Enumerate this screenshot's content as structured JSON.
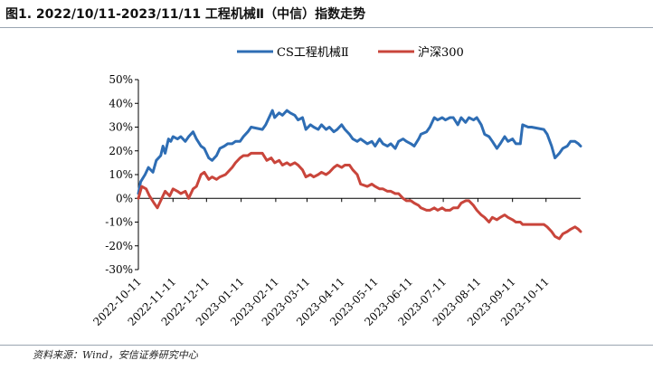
{
  "figure_title": "图1. 2022/10/11-2023/11/11 工程机械Ⅱ（中信）指数走势",
  "source_note": "资料来源：Wind，安信证券研究中心",
  "chart_data": {
    "type": "line",
    "yformat": "percent",
    "ylim": [
      -0.3,
      0.5
    ],
    "yticks": [
      -0.3,
      -0.2,
      -0.1,
      0,
      0.1,
      0.2,
      0.3,
      0.4,
      0.5
    ],
    "ytick_labels": [
      "-30%",
      "-20%",
      "-10%",
      "0%",
      "10%",
      "20%",
      "30%",
      "40%",
      "50%"
    ],
    "xtick_labels": [
      "2022-10-11",
      "2022-11-11",
      "2022-12-11",
      "2023-01-11",
      "2023-02-11",
      "2023-03-11",
      "2023-04-11",
      "2023-05-11",
      "2023-06-11",
      "2023-07-11",
      "2023-08-11",
      "2023-09-11",
      "2023-10-11"
    ],
    "legend_position": "top-center",
    "x_start": "2022-10-11",
    "x_end": "2023-11-11",
    "series": [
      {
        "name": "CS工程机械Ⅱ",
        "color": "#2e6db4",
        "points": [
          [
            "2022-10-11",
            0.02
          ],
          [
            "2022-10-13",
            0.07
          ],
          [
            "2022-10-17",
            0.1
          ],
          [
            "2022-10-20",
            0.13
          ],
          [
            "2022-10-24",
            0.11
          ],
          [
            "2022-10-27",
            0.16
          ],
          [
            "2022-10-31",
            0.18
          ],
          [
            "2022-11-02",
            0.22
          ],
          [
            "2022-11-04",
            0.19
          ],
          [
            "2022-11-07",
            0.25
          ],
          [
            "2022-11-09",
            0.24
          ],
          [
            "2022-11-11",
            0.26
          ],
          [
            "2022-11-15",
            0.25
          ],
          [
            "2022-11-18",
            0.26
          ],
          [
            "2022-11-22",
            0.24
          ],
          [
            "2022-11-25",
            0.26
          ],
          [
            "2022-11-29",
            0.28
          ],
          [
            "2022-12-02",
            0.25
          ],
          [
            "2022-12-06",
            0.22
          ],
          [
            "2022-12-09",
            0.21
          ],
          [
            "2022-12-13",
            0.17
          ],
          [
            "2022-12-16",
            0.16
          ],
          [
            "2022-12-20",
            0.18
          ],
          [
            "2022-12-23",
            0.21
          ],
          [
            "2022-12-27",
            0.22
          ],
          [
            "2022-12-30",
            0.23
          ],
          [
            "2023-01-03",
            0.23
          ],
          [
            "2023-01-06",
            0.24
          ],
          [
            "2023-01-10",
            0.24
          ],
          [
            "2023-01-13",
            0.26
          ],
          [
            "2023-01-17",
            0.28
          ],
          [
            "2023-01-20",
            0.3
          ],
          [
            "2023-01-30",
            0.29
          ],
          [
            "2023-02-02",
            0.31
          ],
          [
            "2023-02-06",
            0.35
          ],
          [
            "2023-02-08",
            0.37
          ],
          [
            "2023-02-10",
            0.34
          ],
          [
            "2023-02-14",
            0.36
          ],
          [
            "2023-02-17",
            0.35
          ],
          [
            "2023-02-21",
            0.37
          ],
          [
            "2023-02-24",
            0.36
          ],
          [
            "2023-02-28",
            0.35
          ],
          [
            "2023-03-03",
            0.33
          ],
          [
            "2023-03-07",
            0.34
          ],
          [
            "2023-03-10",
            0.29
          ],
          [
            "2023-03-14",
            0.31
          ],
          [
            "2023-03-17",
            0.3
          ],
          [
            "2023-03-21",
            0.29
          ],
          [
            "2023-03-24",
            0.31
          ],
          [
            "2023-03-28",
            0.29
          ],
          [
            "2023-03-31",
            0.3
          ],
          [
            "2023-04-04",
            0.28
          ],
          [
            "2023-04-07",
            0.29
          ],
          [
            "2023-04-11",
            0.31
          ],
          [
            "2023-04-14",
            0.29
          ],
          [
            "2023-04-18",
            0.27
          ],
          [
            "2023-04-21",
            0.25
          ],
          [
            "2023-04-25",
            0.24
          ],
          [
            "2023-04-28",
            0.25
          ],
          [
            "2023-05-04",
            0.23
          ],
          [
            "2023-05-08",
            0.24
          ],
          [
            "2023-05-11",
            0.22
          ],
          [
            "2023-05-15",
            0.25
          ],
          [
            "2023-05-18",
            0.23
          ],
          [
            "2023-05-22",
            0.22
          ],
          [
            "2023-05-25",
            0.23
          ],
          [
            "2023-05-29",
            0.21
          ],
          [
            "2023-06-01",
            0.24
          ],
          [
            "2023-06-05",
            0.25
          ],
          [
            "2023-06-08",
            0.24
          ],
          [
            "2023-06-12",
            0.23
          ],
          [
            "2023-06-15",
            0.22
          ],
          [
            "2023-06-19",
            0.25
          ],
          [
            "2023-06-21",
            0.27
          ],
          [
            "2023-06-26",
            0.28
          ],
          [
            "2023-06-29",
            0.3
          ],
          [
            "2023-07-03",
            0.34
          ],
          [
            "2023-07-06",
            0.33
          ],
          [
            "2023-07-10",
            0.34
          ],
          [
            "2023-07-13",
            0.33
          ],
          [
            "2023-07-17",
            0.34
          ],
          [
            "2023-07-20",
            0.34
          ],
          [
            "2023-07-24",
            0.31
          ],
          [
            "2023-07-27",
            0.34
          ],
          [
            "2023-07-31",
            0.32
          ],
          [
            "2023-08-03",
            0.34
          ],
          [
            "2023-08-07",
            0.33
          ],
          [
            "2023-08-10",
            0.34
          ],
          [
            "2023-08-14",
            0.31
          ],
          [
            "2023-08-17",
            0.27
          ],
          [
            "2023-08-21",
            0.26
          ],
          [
            "2023-08-24",
            0.24
          ],
          [
            "2023-08-28",
            0.21
          ],
          [
            "2023-08-31",
            0.23
          ],
          [
            "2023-09-04",
            0.26
          ],
          [
            "2023-09-07",
            0.24
          ],
          [
            "2023-09-11",
            0.25
          ],
          [
            "2023-09-14",
            0.23
          ],
          [
            "2023-09-18",
            0.23
          ],
          [
            "2023-09-20",
            0.31
          ],
          [
            "2023-09-25",
            0.3
          ],
          [
            "2023-09-28",
            0.3
          ],
          [
            "2023-10-09",
            0.29
          ],
          [
            "2023-10-12",
            0.27
          ],
          [
            "2023-10-16",
            0.22
          ],
          [
            "2023-10-19",
            0.17
          ],
          [
            "2023-10-23",
            0.19
          ],
          [
            "2023-10-26",
            0.21
          ],
          [
            "2023-10-30",
            0.22
          ],
          [
            "2023-11-02",
            0.24
          ],
          [
            "2023-11-06",
            0.24
          ],
          [
            "2023-11-09",
            0.23
          ],
          [
            "2023-11-11",
            0.22
          ]
        ]
      },
      {
        "name": "沪深300",
        "color": "#c9453b",
        "points": [
          [
            "2022-10-11",
            0.0
          ],
          [
            "2022-10-14",
            0.05
          ],
          [
            "2022-10-18",
            0.04
          ],
          [
            "2022-10-21",
            0.01
          ],
          [
            "2022-10-25",
            -0.02
          ],
          [
            "2022-10-28",
            -0.04
          ],
          [
            "2022-11-01",
            0.0
          ],
          [
            "2022-11-04",
            0.03
          ],
          [
            "2022-11-08",
            0.01
          ],
          [
            "2022-11-11",
            0.04
          ],
          [
            "2022-11-15",
            0.03
          ],
          [
            "2022-11-18",
            0.02
          ],
          [
            "2022-11-22",
            0.03
          ],
          [
            "2022-11-25",
            0.0
          ],
          [
            "2022-11-29",
            0.04
          ],
          [
            "2022-12-02",
            0.05
          ],
          [
            "2022-12-06",
            0.1
          ],
          [
            "2022-12-09",
            0.11
          ],
          [
            "2022-12-13",
            0.08
          ],
          [
            "2022-12-16",
            0.09
          ],
          [
            "2022-12-20",
            0.08
          ],
          [
            "2022-12-23",
            0.09
          ],
          [
            "2022-12-28",
            0.1
          ],
          [
            "2023-01-03",
            0.13
          ],
          [
            "2023-01-06",
            0.15
          ],
          [
            "2023-01-10",
            0.17
          ],
          [
            "2023-01-13",
            0.18
          ],
          [
            "2023-01-17",
            0.18
          ],
          [
            "2023-01-20",
            0.19
          ],
          [
            "2023-01-30",
            0.19
          ],
          [
            "2023-02-03",
            0.16
          ],
          [
            "2023-02-07",
            0.17
          ],
          [
            "2023-02-10",
            0.15
          ],
          [
            "2023-02-14",
            0.16
          ],
          [
            "2023-02-17",
            0.14
          ],
          [
            "2023-02-21",
            0.15
          ],
          [
            "2023-02-24",
            0.14
          ],
          [
            "2023-02-28",
            0.15
          ],
          [
            "2023-03-03",
            0.14
          ],
          [
            "2023-03-07",
            0.12
          ],
          [
            "2023-03-10",
            0.09
          ],
          [
            "2023-03-14",
            0.1
          ],
          [
            "2023-03-17",
            0.09
          ],
          [
            "2023-03-21",
            0.1
          ],
          [
            "2023-03-24",
            0.11
          ],
          [
            "2023-03-28",
            0.1
          ],
          [
            "2023-03-31",
            0.11
          ],
          [
            "2023-04-04",
            0.13
          ],
          [
            "2023-04-07",
            0.14
          ],
          [
            "2023-04-11",
            0.13
          ],
          [
            "2023-04-14",
            0.14
          ],
          [
            "2023-04-18",
            0.14
          ],
          [
            "2023-04-21",
            0.12
          ],
          [
            "2023-04-25",
            0.1
          ],
          [
            "2023-04-28",
            0.06
          ],
          [
            "2023-05-04",
            0.05
          ],
          [
            "2023-05-08",
            0.06
          ],
          [
            "2023-05-11",
            0.05
          ],
          [
            "2023-05-15",
            0.04
          ],
          [
            "2023-05-18",
            0.04
          ],
          [
            "2023-05-22",
            0.03
          ],
          [
            "2023-05-25",
            0.03
          ],
          [
            "2023-05-29",
            0.02
          ],
          [
            "2023-06-01",
            0.02
          ],
          [
            "2023-06-05",
            0.0
          ],
          [
            "2023-06-08",
            -0.01
          ],
          [
            "2023-06-12",
            -0.01
          ],
          [
            "2023-06-15",
            -0.02
          ],
          [
            "2023-06-19",
            -0.03
          ],
          [
            "2023-06-21",
            -0.04
          ],
          [
            "2023-06-26",
            -0.05
          ],
          [
            "2023-06-29",
            -0.05
          ],
          [
            "2023-07-03",
            -0.04
          ],
          [
            "2023-07-06",
            -0.05
          ],
          [
            "2023-07-10",
            -0.04
          ],
          [
            "2023-07-13",
            -0.05
          ],
          [
            "2023-07-17",
            -0.05
          ],
          [
            "2023-07-20",
            -0.04
          ],
          [
            "2023-07-24",
            -0.04
          ],
          [
            "2023-07-27",
            -0.02
          ],
          [
            "2023-07-31",
            -0.01
          ],
          [
            "2023-08-03",
            -0.01
          ],
          [
            "2023-08-07",
            -0.03
          ],
          [
            "2023-08-10",
            -0.05
          ],
          [
            "2023-08-14",
            -0.07
          ],
          [
            "2023-08-17",
            -0.08
          ],
          [
            "2023-08-21",
            -0.1
          ],
          [
            "2023-08-24",
            -0.08
          ],
          [
            "2023-08-28",
            -0.09
          ],
          [
            "2023-08-31",
            -0.08
          ],
          [
            "2023-09-04",
            -0.07
          ],
          [
            "2023-09-07",
            -0.08
          ],
          [
            "2023-09-11",
            -0.09
          ],
          [
            "2023-09-14",
            -0.1
          ],
          [
            "2023-09-18",
            -0.1
          ],
          [
            "2023-09-20",
            -0.11
          ],
          [
            "2023-09-25",
            -0.11
          ],
          [
            "2023-09-28",
            -0.11
          ],
          [
            "2023-10-09",
            -0.11
          ],
          [
            "2023-10-12",
            -0.12
          ],
          [
            "2023-10-16",
            -0.14
          ],
          [
            "2023-10-19",
            -0.16
          ],
          [
            "2023-10-23",
            -0.17
          ],
          [
            "2023-10-26",
            -0.15
          ],
          [
            "2023-10-30",
            -0.14
          ],
          [
            "2023-11-02",
            -0.13
          ],
          [
            "2023-11-06",
            -0.12
          ],
          [
            "2023-11-09",
            -0.13
          ],
          [
            "2023-11-11",
            -0.14
          ]
        ]
      }
    ]
  }
}
